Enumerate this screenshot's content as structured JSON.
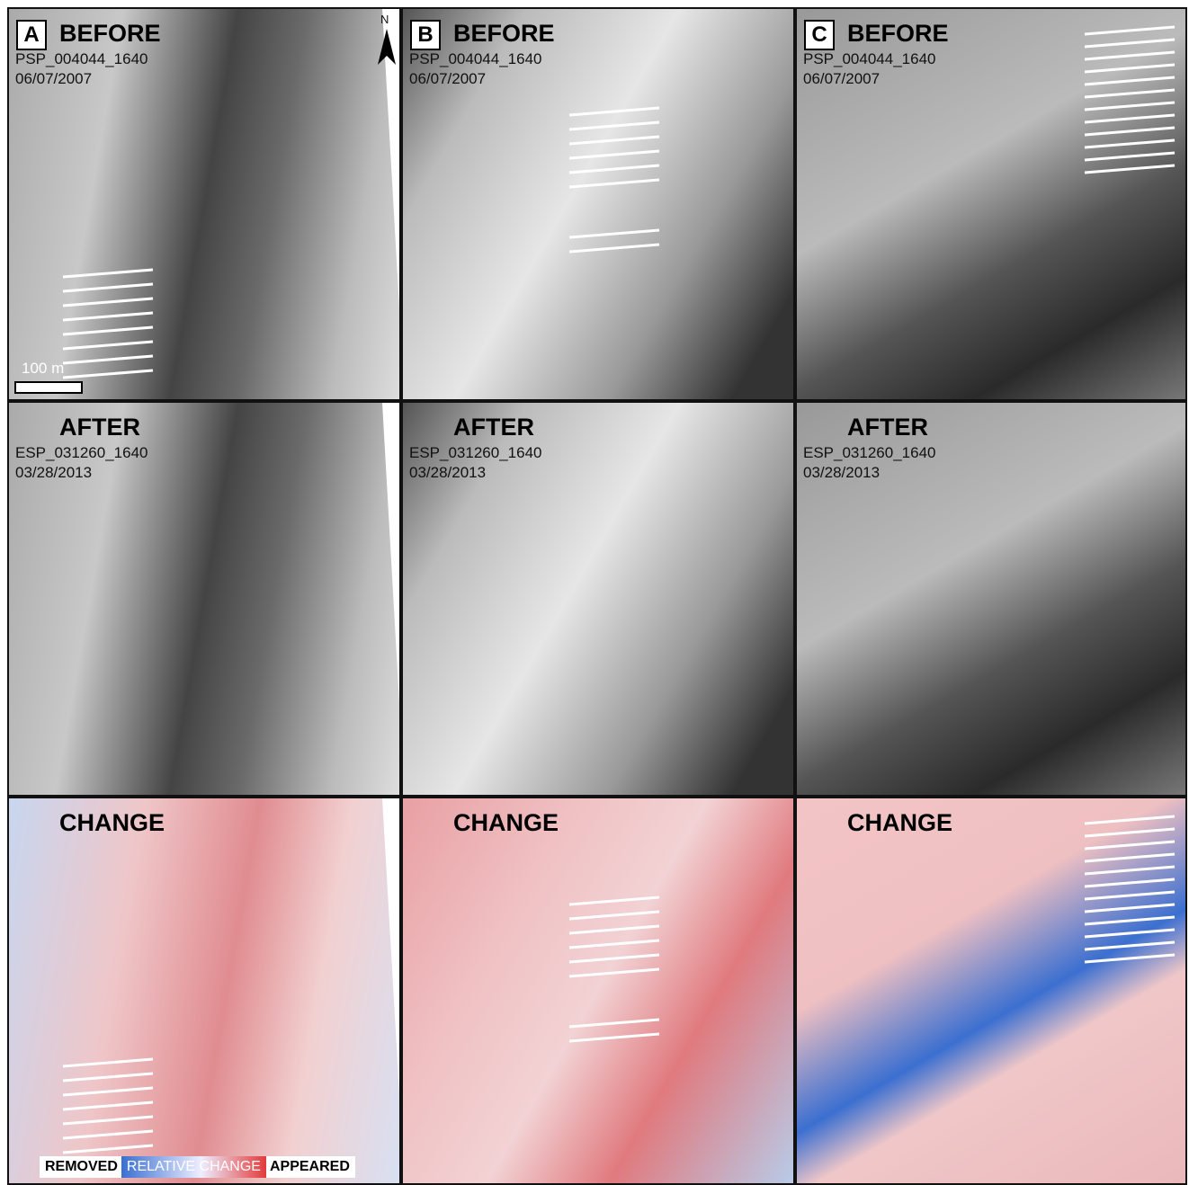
{
  "columns": [
    {
      "letter": "A",
      "before": {
        "label": "BEFORE",
        "image_id": "PSP_004044_1640",
        "date": "06/07/2007"
      },
      "after": {
        "label": "AFTER",
        "image_id": "ESP_031260_1640",
        "date": "03/28/2013"
      },
      "change": {
        "label": "CHANGE"
      }
    },
    {
      "letter": "B",
      "before": {
        "label": "BEFORE",
        "image_id": "PSP_004044_1640",
        "date": "06/07/2007"
      },
      "after": {
        "label": "AFTER",
        "image_id": "ESP_031260_1640",
        "date": "03/28/2013"
      },
      "change": {
        "label": "CHANGE"
      }
    },
    {
      "letter": "C",
      "before": {
        "label": "BEFORE",
        "image_id": "PSP_004044_1640",
        "date": "06/07/2007"
      },
      "after": {
        "label": "AFTER",
        "image_id": "ESP_031260_1640",
        "date": "03/28/2013"
      },
      "change": {
        "label": "CHANGE"
      }
    }
  ],
  "scale_bar": "100 m",
  "north": "N",
  "legend": {
    "removed": "REMOVED",
    "middle": "RELATIVE CHANGE",
    "appeared": "APPEARED"
  }
}
